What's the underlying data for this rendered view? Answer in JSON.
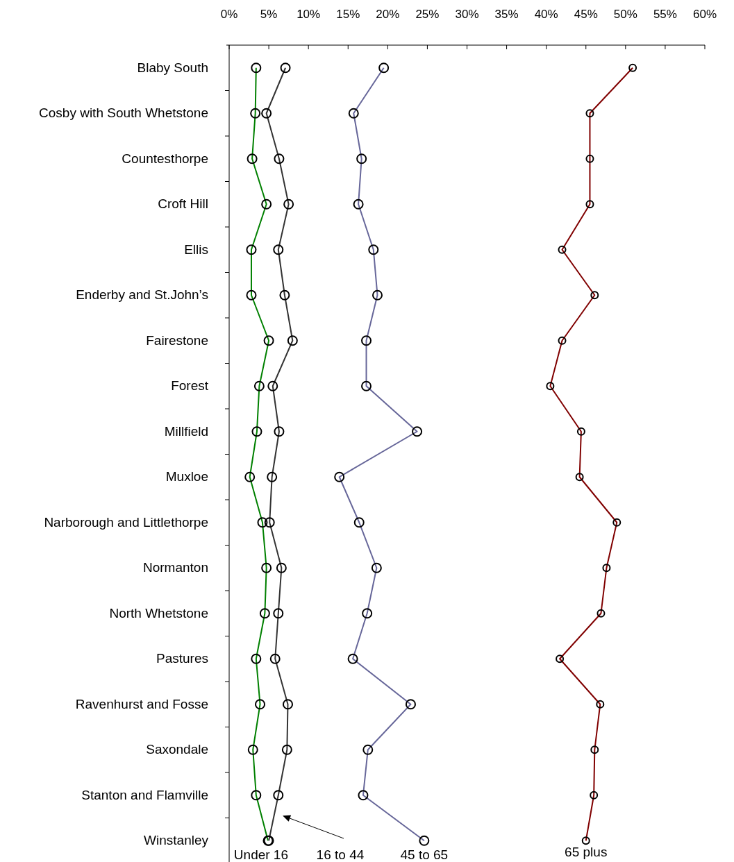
{
  "chart_data": {
    "type": "line",
    "orientation": "horizontal",
    "marker": "circle",
    "grid": false,
    "categories": [
      "Blaby South",
      "Cosby with South Whetstone",
      "Countesthorpe",
      "Croft Hill",
      "Ellis",
      "Enderby and St.John’s",
      "Fairestone",
      "Forest",
      "Millfield",
      "Muxloe",
      "Narborough and Littlethorpe",
      "Normanton",
      "North Whetstone",
      "Pastures",
      "Ravenhurst and Fosse",
      "Saxondale",
      "Stanton and Flamville",
      "Winstanley"
    ],
    "xlim": [
      0,
      60
    ],
    "xticks": [
      {
        "value": 0,
        "label": "0%"
      },
      {
        "value": 5,
        "label": "5%"
      },
      {
        "value": 10,
        "label": "10%"
      },
      {
        "value": 15,
        "label": "15%"
      },
      {
        "value": 20,
        "label": "20%"
      },
      {
        "value": 25,
        "label": "25%"
      },
      {
        "value": 30,
        "label": "30%"
      },
      {
        "value": 35,
        "label": "35%"
      },
      {
        "value": 40,
        "label": "40%"
      },
      {
        "value": 45,
        "label": "45%"
      },
      {
        "value": 50,
        "label": "50%"
      },
      {
        "value": 55,
        "label": "55%"
      },
      {
        "value": 60,
        "label": "60%"
      }
    ],
    "series": [
      {
        "name": "Under 16",
        "color": "#008000",
        "values": [
          3.4,
          3.3,
          2.9,
          4.7,
          2.8,
          2.8,
          5.0,
          3.8,
          3.5,
          2.6,
          4.2,
          4.7,
          4.5,
          3.4,
          3.9,
          3.0,
          3.4,
          4.9
        ]
      },
      {
        "name": "16 to 44",
        "color": "#333333",
        "values": [
          7.1,
          4.7,
          6.3,
          7.5,
          6.2,
          7.0,
          8.0,
          5.5,
          6.3,
          5.4,
          5.1,
          6.6,
          6.2,
          5.8,
          7.4,
          7.3,
          6.2,
          5.0
        ]
      },
      {
        "name": "45 to 65",
        "color": "#666699",
        "values": [
          19.5,
          15.7,
          16.7,
          16.3,
          18.2,
          18.7,
          17.3,
          17.3,
          23.7,
          13.9,
          16.4,
          18.6,
          17.4,
          15.6,
          22.9,
          17.5,
          16.9,
          24.6
        ]
      },
      {
        "name": "65 plus",
        "color": "#800000",
        "values": [
          50.9,
          45.5,
          45.5,
          45.5,
          42.0,
          46.1,
          42.0,
          40.5,
          44.4,
          44.2,
          48.9,
          47.6,
          46.9,
          41.7,
          46.8,
          46.1,
          46.0,
          45.0
        ]
      }
    ]
  }
}
